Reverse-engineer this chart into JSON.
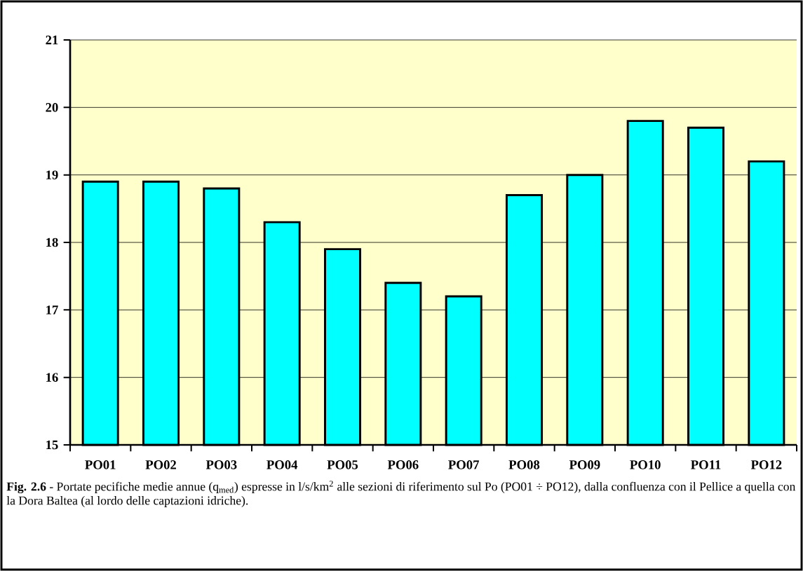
{
  "chart_data": {
    "type": "bar",
    "categories": [
      "PO01",
      "PO02",
      "PO03",
      "PO04",
      "PO05",
      "PO06",
      "PO07",
      "PO08",
      "PO09",
      "PO10",
      "PO11",
      "PO12"
    ],
    "values": [
      18.9,
      18.9,
      18.8,
      18.3,
      17.9,
      17.4,
      17.2,
      18.7,
      19.0,
      19.8,
      19.7,
      19.2
    ],
    "color": "#00ffff",
    "ylim": [
      15,
      21
    ],
    "yticks": [
      15,
      16,
      17,
      18,
      19,
      20,
      21
    ],
    "grid": "y",
    "annotations": [
      "**Fig. 2.6** - Portate pecifiche medie annue (q$_{med}$) espresse in l/s/km$^{2}$ alle sezioni di riferimento sul Po (PO01 ÷ PO12), dalla confluenza con il Pellice a quella con la Dora Baltea (al lordo delle captazioni idriche)."
    ]
  }
}
